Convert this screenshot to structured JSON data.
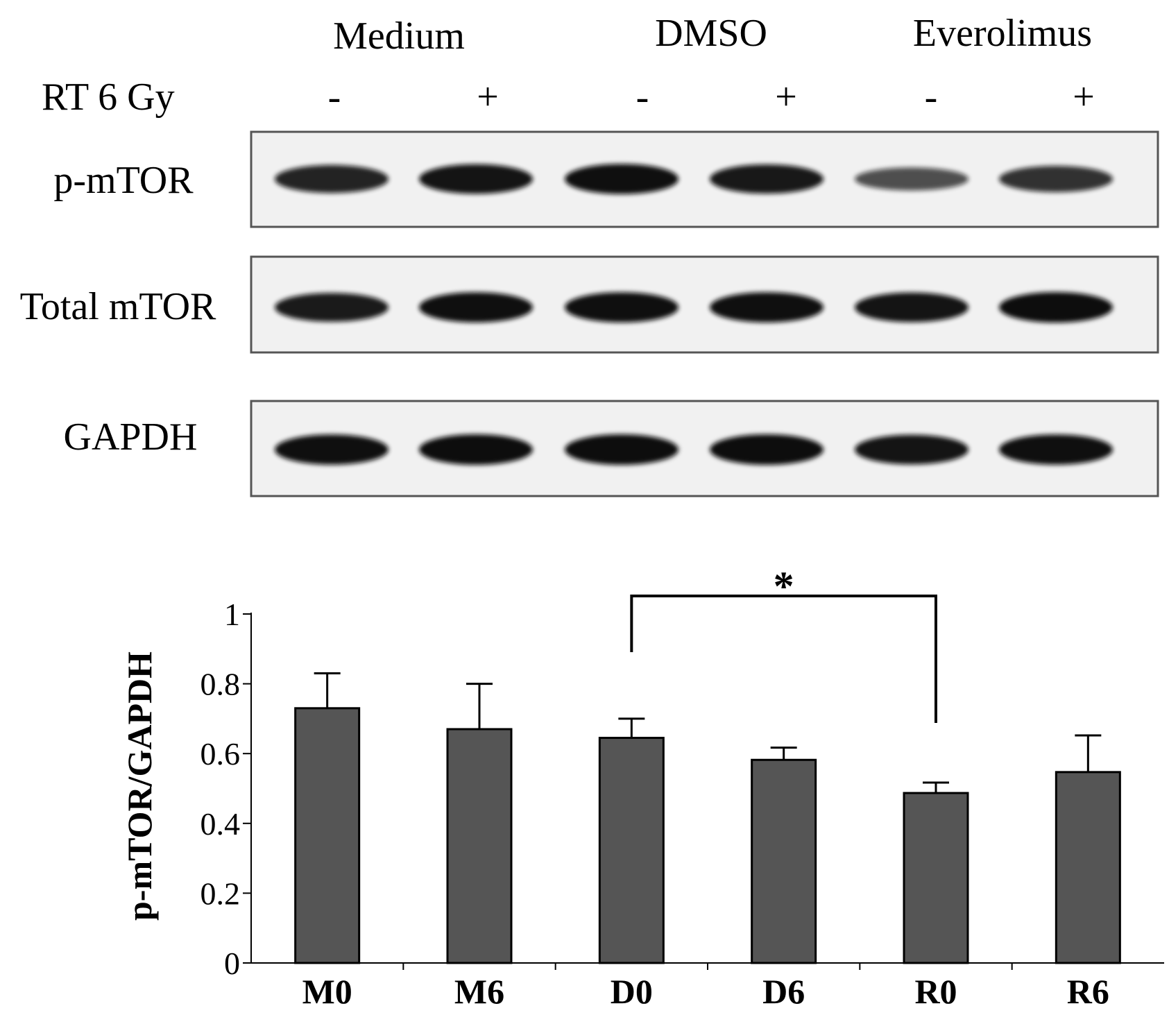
{
  "blot": {
    "groups": [
      "Medium",
      "DMSO",
      "Everolimus"
    ],
    "treatment_label": "RT 6 Gy",
    "treatment_marks": [
      "-",
      "+",
      "-",
      "+",
      "-",
      "+"
    ],
    "rows": [
      {
        "label": "p-mTOR",
        "intensity": [
          0.85,
          0.95,
          0.98,
          0.92,
          0.55,
          0.75
        ]
      },
      {
        "label": "Total mTOR",
        "intensity": [
          0.9,
          0.98,
          0.98,
          0.98,
          0.95,
          1.0
        ]
      },
      {
        "label": "GAPDH",
        "intensity": [
          0.98,
          1.0,
          1.0,
          1.0,
          0.95,
          0.98
        ]
      }
    ],
    "colors": {
      "band": "#111111",
      "frame": "#555555",
      "membrane": "#f1f1f1"
    }
  },
  "chart_data": {
    "type": "bar",
    "categories": [
      "M0",
      "M6",
      "D0",
      "D6",
      "R0",
      "R6"
    ],
    "values": [
      0.73,
      0.67,
      0.645,
      0.582,
      0.487,
      0.547
    ],
    "errors": [
      0.1,
      0.13,
      0.055,
      0.035,
      0.03,
      0.105
    ],
    "ylabel": "p-mTOR/GAPDH",
    "ylim": [
      0,
      1
    ],
    "yticks": [
      0,
      0.2,
      0.4,
      0.6,
      0.8,
      1
    ],
    "ytick_labels": [
      "0",
      "0.2",
      "0.4",
      "0.6",
      "0.8",
      "1"
    ],
    "grid": false,
    "bar_color": "#555555",
    "significance": {
      "from": "D0",
      "to": "R0",
      "label": "*"
    }
  }
}
